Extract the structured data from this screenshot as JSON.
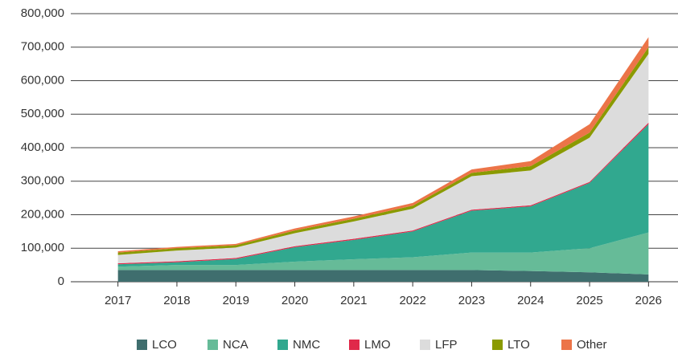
{
  "chart_data": {
    "type": "stacked_area",
    "categories": [
      "2017",
      "2018",
      "2019",
      "2020",
      "2021",
      "2022",
      "2023",
      "2024",
      "2025",
      "2026"
    ],
    "series": [
      {
        "name": "LCO",
        "color": "#3f6e6e",
        "values": [
          35000,
          35000,
          35000,
          35000,
          35000,
          35000,
          35000,
          32000,
          28000,
          22000
        ]
      },
      {
        "name": "NCA",
        "color": "#66bb98",
        "values": [
          10000,
          15000,
          15000,
          25000,
          32000,
          38000,
          52000,
          55000,
          72000,
          125000
        ]
      },
      {
        "name": "NMC",
        "color": "#31a88f",
        "values": [
          7000,
          8000,
          18000,
          43000,
          58000,
          77000,
          125000,
          138000,
          195000,
          323000
        ]
      },
      {
        "name": "LMO",
        "color": "#e0294a",
        "values": [
          3000,
          3000,
          3000,
          3000,
          3000,
          3000,
          3000,
          3000,
          3000,
          5000
        ]
      },
      {
        "name": "LFP",
        "color": "#dcdcdc",
        "values": [
          25000,
          32000,
          31000,
          39000,
          52000,
          65000,
          100000,
          104000,
          132000,
          205000
        ]
      },
      {
        "name": "LTO",
        "color": "#8a9a00",
        "values": [
          7000,
          7000,
          7000,
          8000,
          8000,
          9000,
          10000,
          13000,
          15000,
          20000
        ]
      },
      {
        "name": "Other",
        "color": "#ec7448",
        "values": [
          4000,
          4000,
          4000,
          6000,
          7000,
          8000,
          10000,
          15000,
          25000,
          30000
        ]
      }
    ],
    "ylim": [
      0,
      800000
    ],
    "yticks": [
      0,
      {
        "value": 100000,
        "label": "100,000"
      },
      {
        "value": 200000,
        "label": "200,000"
      },
      {
        "value": 300000,
        "label": "300,000"
      },
      {
        "value": 400000,
        "label": "400,000"
      },
      {
        "value": 500000,
        "label": "500,000"
      },
      {
        "value": 600000,
        "label": "600,000"
      },
      {
        "value": 700000,
        "label": "700,000"
      },
      {
        "value": 800000,
        "label": "800,000"
      }
    ],
    "grid": true,
    "legend": "bottom"
  }
}
